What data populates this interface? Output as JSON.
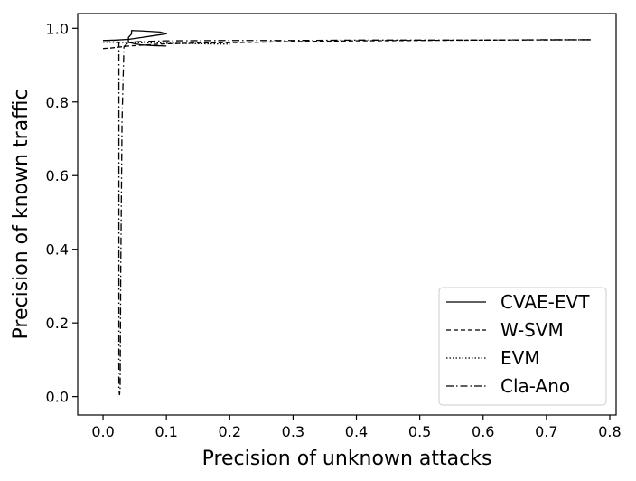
{
  "chart_data": {
    "type": "line",
    "xlabel": "Precision of unknown attacks",
    "ylabel": "Precision of known traffic",
    "xlim": [
      -0.04,
      0.81
    ],
    "ylim": [
      -0.05,
      1.04
    ],
    "xticks": [
      "0.0",
      "0.1",
      "0.2",
      "0.3",
      "0.4",
      "0.5",
      "0.6",
      "0.7",
      "0.8"
    ],
    "yticks": [
      "0.0",
      "0.2",
      "0.4",
      "0.6",
      "0.8",
      "1.0"
    ],
    "grid": false,
    "legend_position": "bottom-right",
    "series": [
      {
        "name": "CVAE-EVT",
        "style": "solid",
        "points": [
          [
            0.0,
            0.967
          ],
          [
            0.02,
            0.968
          ],
          [
            0.04,
            0.97
          ],
          [
            0.06,
            0.975
          ],
          [
            0.08,
            0.98
          ],
          [
            0.1,
            0.985
          ],
          [
            0.09,
            0.99
          ],
          [
            0.06,
            0.993
          ],
          [
            0.045,
            0.994
          ],
          [
            0.045,
            0.985
          ],
          [
            0.04,
            0.975
          ],
          [
            0.04,
            0.962
          ],
          [
            0.05,
            0.958
          ],
          [
            0.06,
            0.955
          ],
          [
            0.08,
            0.953
          ],
          [
            0.1,
            0.952
          ]
        ]
      },
      {
        "name": "W-SVM",
        "style": "dashed",
        "points": [
          [
            0.0,
            0.945
          ],
          [
            0.01,
            0.946
          ],
          [
            0.02,
            0.948
          ],
          [
            0.03,
            0.95
          ],
          [
            0.04,
            0.952
          ],
          [
            0.05,
            0.953
          ],
          [
            0.07,
            0.955
          ],
          [
            0.1,
            0.958
          ],
          [
            0.15,
            0.96
          ],
          [
            0.2,
            0.961
          ],
          [
            0.3,
            0.964
          ],
          [
            0.4,
            0.966
          ],
          [
            0.5,
            0.967
          ],
          [
            0.6,
            0.968
          ],
          [
            0.77,
            0.969
          ]
        ]
      },
      {
        "name": "EVM",
        "style": "dotted",
        "points": [
          [
            0.0,
            0.962
          ],
          [
            0.02,
            0.962
          ],
          [
            0.05,
            0.961
          ],
          [
            0.08,
            0.96
          ],
          [
            0.12,
            0.959
          ],
          [
            0.16,
            0.958
          ],
          [
            0.2,
            0.957
          ]
        ]
      },
      {
        "name": "Cla-Ano",
        "style": "dashdot",
        "points": [
          [
            0.0,
            0.967
          ],
          [
            0.02,
            0.967
          ],
          [
            0.025,
            0.96
          ],
          [
            0.025,
            0.6
          ],
          [
            0.025,
            0.02
          ],
          [
            0.026,
            0.005
          ],
          [
            0.027,
            0.02
          ],
          [
            0.028,
            0.35
          ],
          [
            0.03,
            0.75
          ],
          [
            0.033,
            0.95
          ],
          [
            0.04,
            0.962
          ],
          [
            0.06,
            0.964
          ],
          [
            0.1,
            0.966
          ],
          [
            0.2,
            0.967
          ],
          [
            0.3,
            0.967
          ],
          [
            0.4,
            0.968
          ],
          [
            0.5,
            0.968
          ],
          [
            0.6,
            0.968
          ],
          [
            0.7,
            0.969
          ],
          [
            0.767,
            0.969
          ]
        ]
      }
    ]
  }
}
